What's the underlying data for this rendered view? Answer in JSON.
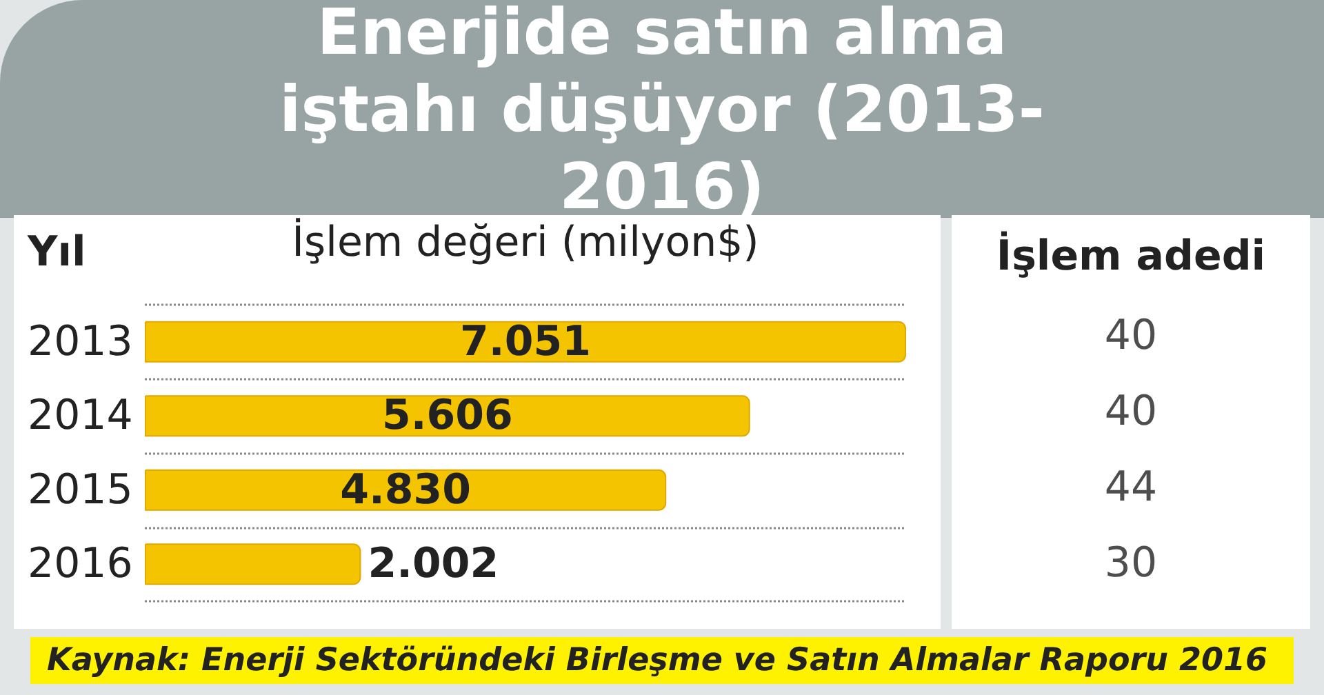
{
  "chart_data": [
    {
      "type": "bar",
      "orientation": "horizontal",
      "title": "Enerjide satın alma iştahı düşüyor (2013-2016)",
      "ylabel": "Yıl",
      "xlabel": "İşlem değeri (milyon$)",
      "categories": [
        "2013",
        "2014",
        "2015",
        "2016"
      ],
      "values": [
        7051,
        5606,
        4830,
        2002
      ],
      "value_labels": [
        "7.051",
        "5.606",
        "4.830",
        "2.002"
      ],
      "color": "#f5c400",
      "grid": "y",
      "tick_labels": "y",
      "annotations": [
        "Kaynak: Enerji Sektöründeki Birleşme ve Satın Almalar Raporu 2016"
      ]
    },
    {
      "type": "other",
      "title": "İşlem adedi",
      "values": [
        40,
        40,
        44,
        30
      ],
      "data_labels": true
    }
  ]
}
